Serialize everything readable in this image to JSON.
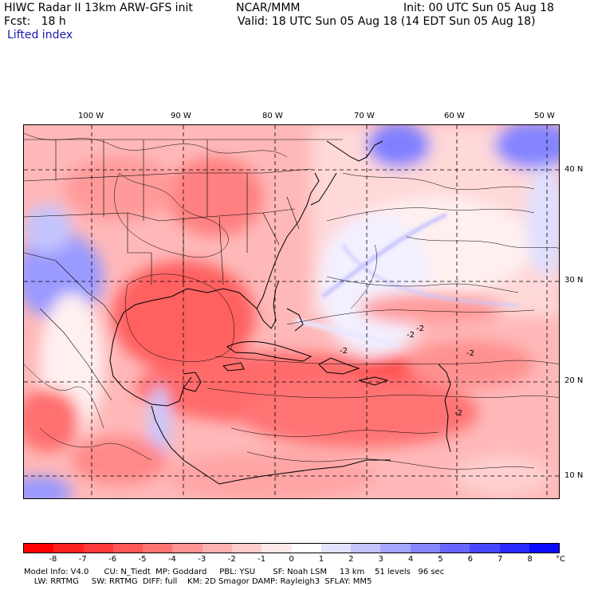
{
  "header": {
    "model_title": "HIWC Radar II 13km ARW-GFS init",
    "org": "NCAR/MMM",
    "init": "Init: 00 UTC Sun 05 Aug 18",
    "fcst": "Fcst:   18 h",
    "valid": "Valid: 18 UTC Sun 05 Aug 18 (14 EDT Sun 05 Aug 18)",
    "field": "Lifted index"
  },
  "map": {
    "lon_labels": [
      "100 W",
      "90 W",
      "80 W",
      "70 W",
      "60 W",
      "50 W"
    ],
    "lat_labels": [
      "40 N",
      "30 N",
      "20 N",
      "10 N"
    ],
    "contour_labels": [
      "-2",
      "-2",
      "-2",
      "-2",
      "-2"
    ]
  },
  "colorbar": {
    "labels": [
      "-8",
      "-7",
      "-6",
      "-5",
      "-4",
      "-3",
      "-2",
      "-1",
      "0",
      "1",
      "2",
      "3",
      "4",
      "5",
      "6",
      "7",
      "8"
    ],
    "unit": "°C",
    "colors": [
      "#ff0000",
      "#ff2020",
      "#ff3a3a",
      "#ff5656",
      "#ff7373",
      "#ff9292",
      "#ffb0b0",
      "#ffcccc",
      "#ffe8e8",
      "#ffffff",
      "#e3e3ff",
      "#c4c4ff",
      "#a5a5ff",
      "#8686ff",
      "#6666ff",
      "#4747ff",
      "#2929ff",
      "#0a0aff"
    ]
  },
  "footer": {
    "line1": "Model Info: V4.0      CU: N_Tiedt  MP: Goddard     PBL: YSU       SF: Noah LSM     13 km    51 levels   96 sec",
    "line2": "    LW: RRTMG     SW: RRTMG  DIFF: full    KM: 2D Smagor DAMP: Rayleigh3  SFLAY: MM5"
  }
}
